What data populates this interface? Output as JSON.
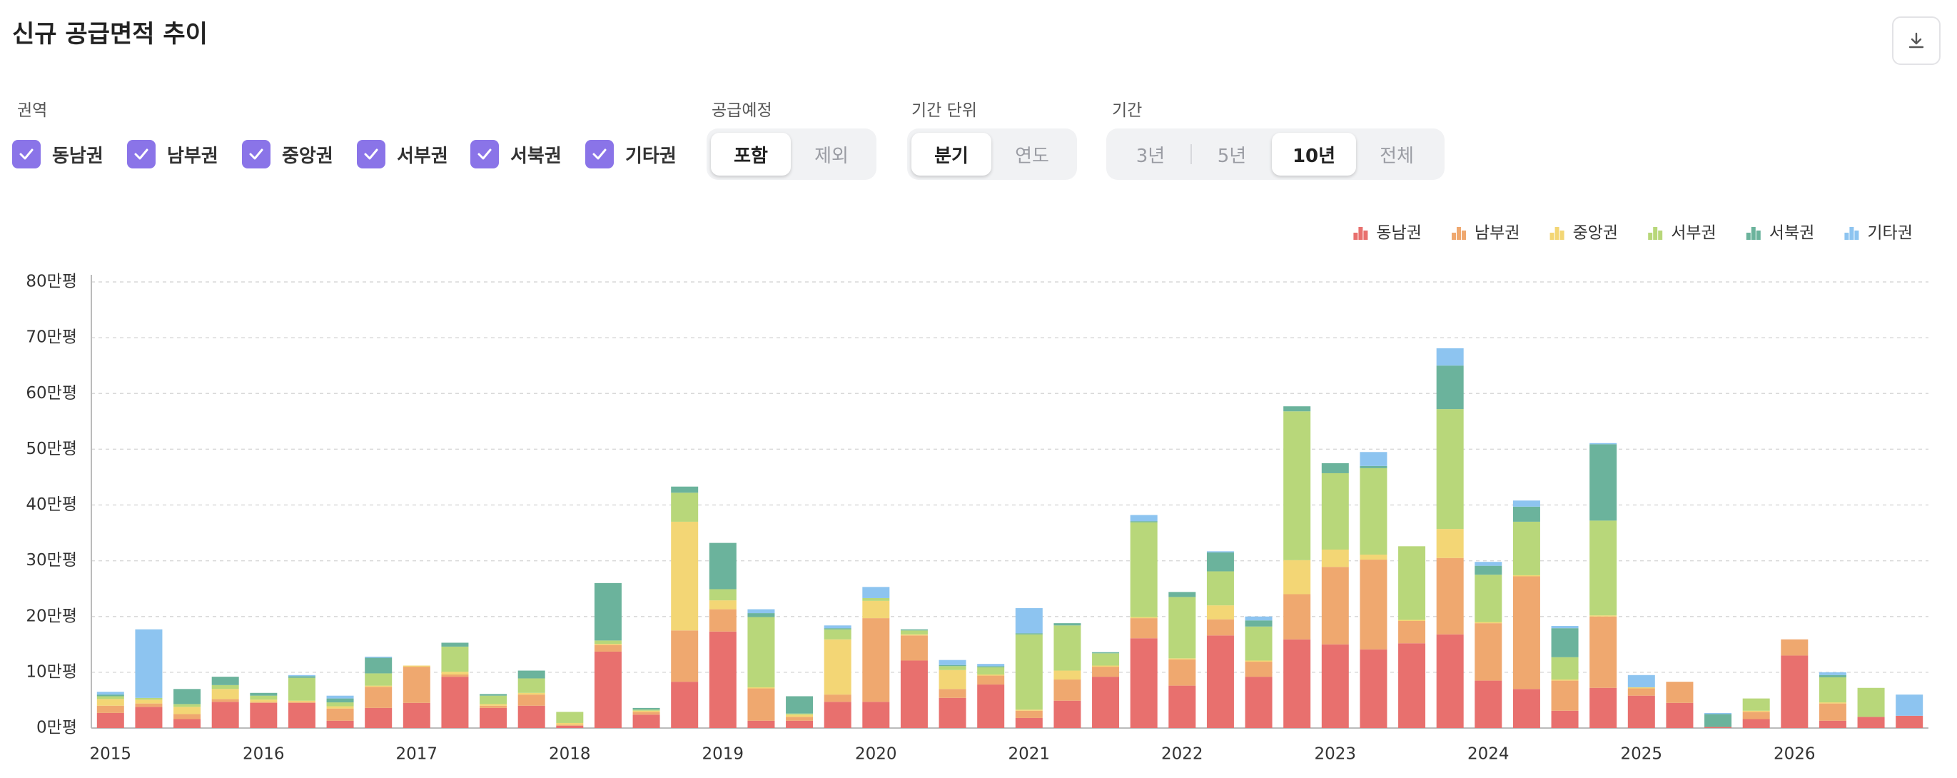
{
  "header": {
    "title": "신규 공급면적 추이"
  },
  "filters": {
    "region": {
      "label": "권역",
      "options": [
        "동남권",
        "남부권",
        "중앙권",
        "서부권",
        "서북권",
        "기타권"
      ]
    },
    "supply": {
      "label": "공급예정",
      "options": [
        "포함",
        "제외"
      ]
    },
    "unit": {
      "label": "기간 단위",
      "options": [
        "분기",
        "연도"
      ]
    },
    "period": {
      "label": "기간",
      "options": [
        "3년",
        "5년",
        "10년",
        "전체"
      ]
    }
  },
  "chart_data": {
    "type": "stacked_bar",
    "legend": "top-right",
    "grid": true,
    "categories": [
      "2015",
      null,
      null,
      null,
      "2016",
      null,
      null,
      null,
      "2017",
      null,
      null,
      null,
      "2018",
      null,
      null,
      null,
      "2019",
      null,
      null,
      null,
      "2020",
      null,
      null,
      null,
      "2021",
      null,
      null,
      null,
      "2022",
      null,
      null,
      null,
      "2023",
      null,
      null,
      null,
      "2024",
      null,
      null,
      null,
      "2025",
      null,
      null,
      null,
      "2026",
      null,
      null,
      null
    ],
    "ylim": [
      0,
      80
    ],
    "yticks": [
      {
        "value": 0,
        "label": "0만평"
      },
      {
        "value": 10,
        "label": "10만평"
      },
      {
        "value": 20,
        "label": "20만평"
      },
      {
        "value": 30,
        "label": "30만평"
      },
      {
        "value": 40,
        "label": "40만평"
      },
      {
        "value": 50,
        "label": "50만평"
      },
      {
        "value": 60,
        "label": "60만평"
      },
      {
        "value": 70,
        "label": "70만평"
      },
      {
        "value": 80,
        "label": "80만평"
      }
    ],
    "series": [
      {
        "name": "동남권",
        "color": "#e8706e",
        "values": [
          2.7,
          3.8,
          1.6,
          4.7,
          4.5,
          4.5,
          1.3,
          3.6,
          4.5,
          9.2,
          3.6,
          4,
          0.4,
          13.7,
          2.4,
          8.3,
          17.3,
          1.3,
          1.3,
          4.7,
          4.7,
          12.1,
          5.4,
          7.8,
          1.8,
          4.9,
          9.2,
          16.1,
          7.6,
          16.6,
          9.2,
          15.9,
          15,
          14.1,
          15.2,
          16.8,
          8.5,
          7,
          3.1,
          7.2,
          5.8,
          4.5,
          0.2,
          1.6,
          13,
          1.3,
          2,
          2.2
        ]
      },
      {
        "name": "남부권",
        "color": "#efa86f",
        "values": [
          1.3,
          0.6,
          0.9,
          0.5,
          0.2,
          0.2,
          2.2,
          3.8,
          6.5,
          0.4,
          0.4,
          2,
          0.2,
          1.2,
          0.5,
          9.2,
          4,
          5.8,
          0.7,
          1.3,
          15,
          4.5,
          1.6,
          1.6,
          1.3,
          3.8,
          1.8,
          3.6,
          4.7,
          2.9,
          2.7,
          8.1,
          13.9,
          16.1,
          4,
          13.7,
          10.3,
          20.2,
          5.4,
          12.8,
          1.3,
          3.8,
          0,
          1.3,
          2.9,
          3.1,
          0,
          0
        ]
      },
      {
        "name": "중앙권",
        "color": "#f3d675",
        "values": [
          1.2,
          0.7,
          1.3,
          1.8,
          0.4,
          0.2,
          0.4,
          0.2,
          0.2,
          0.5,
          0.3,
          0.3,
          0.3,
          0.2,
          0.2,
          19.5,
          1.6,
          0.2,
          0.4,
          9.9,
          3.1,
          0.2,
          3.4,
          0.2,
          0.2,
          1.6,
          0.2,
          0.2,
          0.2,
          2.5,
          0.2,
          6.1,
          3.1,
          0.9,
          0.2,
          5.2,
          0.2,
          0.2,
          0.2,
          0.2,
          0.2,
          0,
          0,
          0.2,
          0,
          0.2,
          0,
          0
        ]
      },
      {
        "name": "서부권",
        "color": "#b8d77a",
        "values": [
          0.5,
          0.3,
          0.5,
          0.7,
          0.7,
          4.1,
          0.7,
          2.2,
          0,
          4.5,
          1.5,
          2.6,
          2,
          0.6,
          0.2,
          5.2,
          2,
          12.6,
          0.2,
          1.8,
          0.5,
          0.7,
          0.7,
          1.3,
          13.5,
          8.1,
          2.2,
          17,
          11,
          6.1,
          6.1,
          26.7,
          13.7,
          15.5,
          13.2,
          21.5,
          8.5,
          9.6,
          4,
          17,
          0,
          0,
          0,
          2.2,
          0,
          4.5,
          5.2,
          0
        ]
      },
      {
        "name": "서북권",
        "color": "#6bb39c",
        "values": [
          0.3,
          0,
          2.7,
          1.5,
          0.5,
          0.3,
          0.7,
          2.8,
          0,
          0.7,
          0.3,
          1.4,
          0,
          10.3,
          0.3,
          1.1,
          8.3,
          0.7,
          3.1,
          0.2,
          0,
          0.2,
          0.2,
          0.2,
          0.2,
          0.4,
          0.2,
          0.2,
          0.9,
          3.4,
          1.1,
          0.9,
          1.8,
          0.4,
          0,
          7.8,
          1.6,
          2.7,
          5.2,
          13.7,
          0,
          0,
          2.3,
          0,
          0,
          0.4,
          0,
          0
        ]
      },
      {
        "name": "기타권",
        "color": "#8dc4f0",
        "values": [
          0.5,
          12.3,
          0,
          0,
          0,
          0.2,
          0.5,
          0.2,
          0,
          0,
          0,
          0,
          0,
          0,
          0,
          0,
          0,
          0.7,
          0,
          0.5,
          2,
          0,
          0.9,
          0.4,
          4.5,
          0,
          0,
          1.1,
          0,
          0.2,
          0.7,
          0,
          0,
          2.5,
          0,
          3.1,
          0.7,
          1.1,
          0.4,
          0.2,
          2.2,
          0,
          0.2,
          0,
          0,
          0.5,
          0,
          3.8
        ]
      }
    ]
  }
}
